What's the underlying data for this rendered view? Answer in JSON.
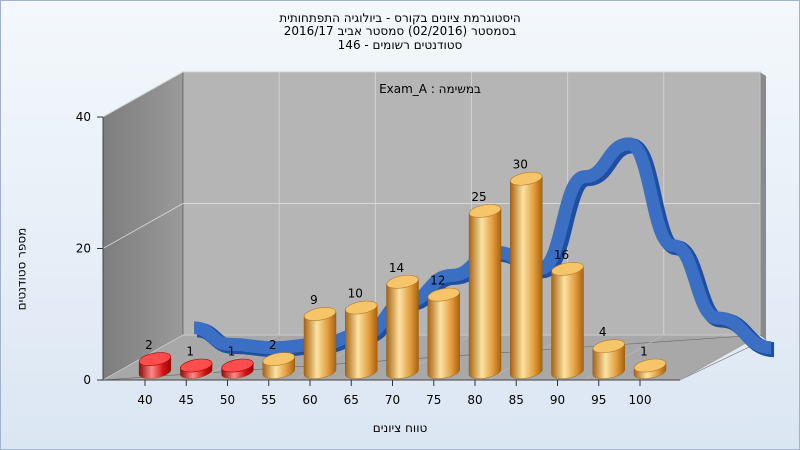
{
  "title": {
    "line1": "היסטוגרמת ציונים בקורס - ביולוגיה התפתחותית",
    "line2": "בסמסטר  (02/2016)  סמסטר אביב 2016/17",
    "line3": "סטודנטים רשומים - 146"
  },
  "annotation": "במשימה : Exam_A",
  "colors": {
    "low_bar": "#e01818",
    "bar": "#e8a23c",
    "curve": "#3a6fc4",
    "back_wall": "#b5b5b5",
    "side_wall": "#8c8c8c",
    "floor": "#a8a8a8"
  },
  "chart_data": {
    "type": "bar",
    "title": "היסטוגרמת ציונים בקורס - ביולוגיה התפתחותית",
    "xlabel": "טווח ציונים",
    "ylabel": "מספר סטודנטים",
    "categories": [
      "40",
      "45",
      "50",
      "55",
      "60",
      "65",
      "70",
      "75",
      "80",
      "85",
      "90",
      "95",
      "100"
    ],
    "values": [
      2,
      1,
      1,
      2,
      9,
      10,
      14,
      12,
      25,
      30,
      16,
      4,
      1
    ],
    "failing_categories": [
      "40",
      "45",
      "50"
    ],
    "ylim": [
      0,
      40
    ],
    "yticks": [
      0,
      20,
      40
    ],
    "curve": [
      {
        "x": 41,
        "y": 4.5
      },
      {
        "x": 45,
        "y": 2.0
      },
      {
        "x": 50,
        "y": 1.5
      },
      {
        "x": 55,
        "y": 2.0
      },
      {
        "x": 60,
        "y": 3.5
      },
      {
        "x": 65,
        "y": 8.5
      },
      {
        "x": 70,
        "y": 12.5
      },
      {
        "x": 75,
        "y": 16.0
      },
      {
        "x": 80,
        "y": 13.5
      },
      {
        "x": 85,
        "y": 27.5
      },
      {
        "x": 90,
        "y": 32.5
      },
      {
        "x": 95,
        "y": 17.0
      },
      {
        "x": 100,
        "y": 6.0
      },
      {
        "x": 106,
        "y": 1.5
      }
    ],
    "grid": true,
    "legend": "none"
  }
}
